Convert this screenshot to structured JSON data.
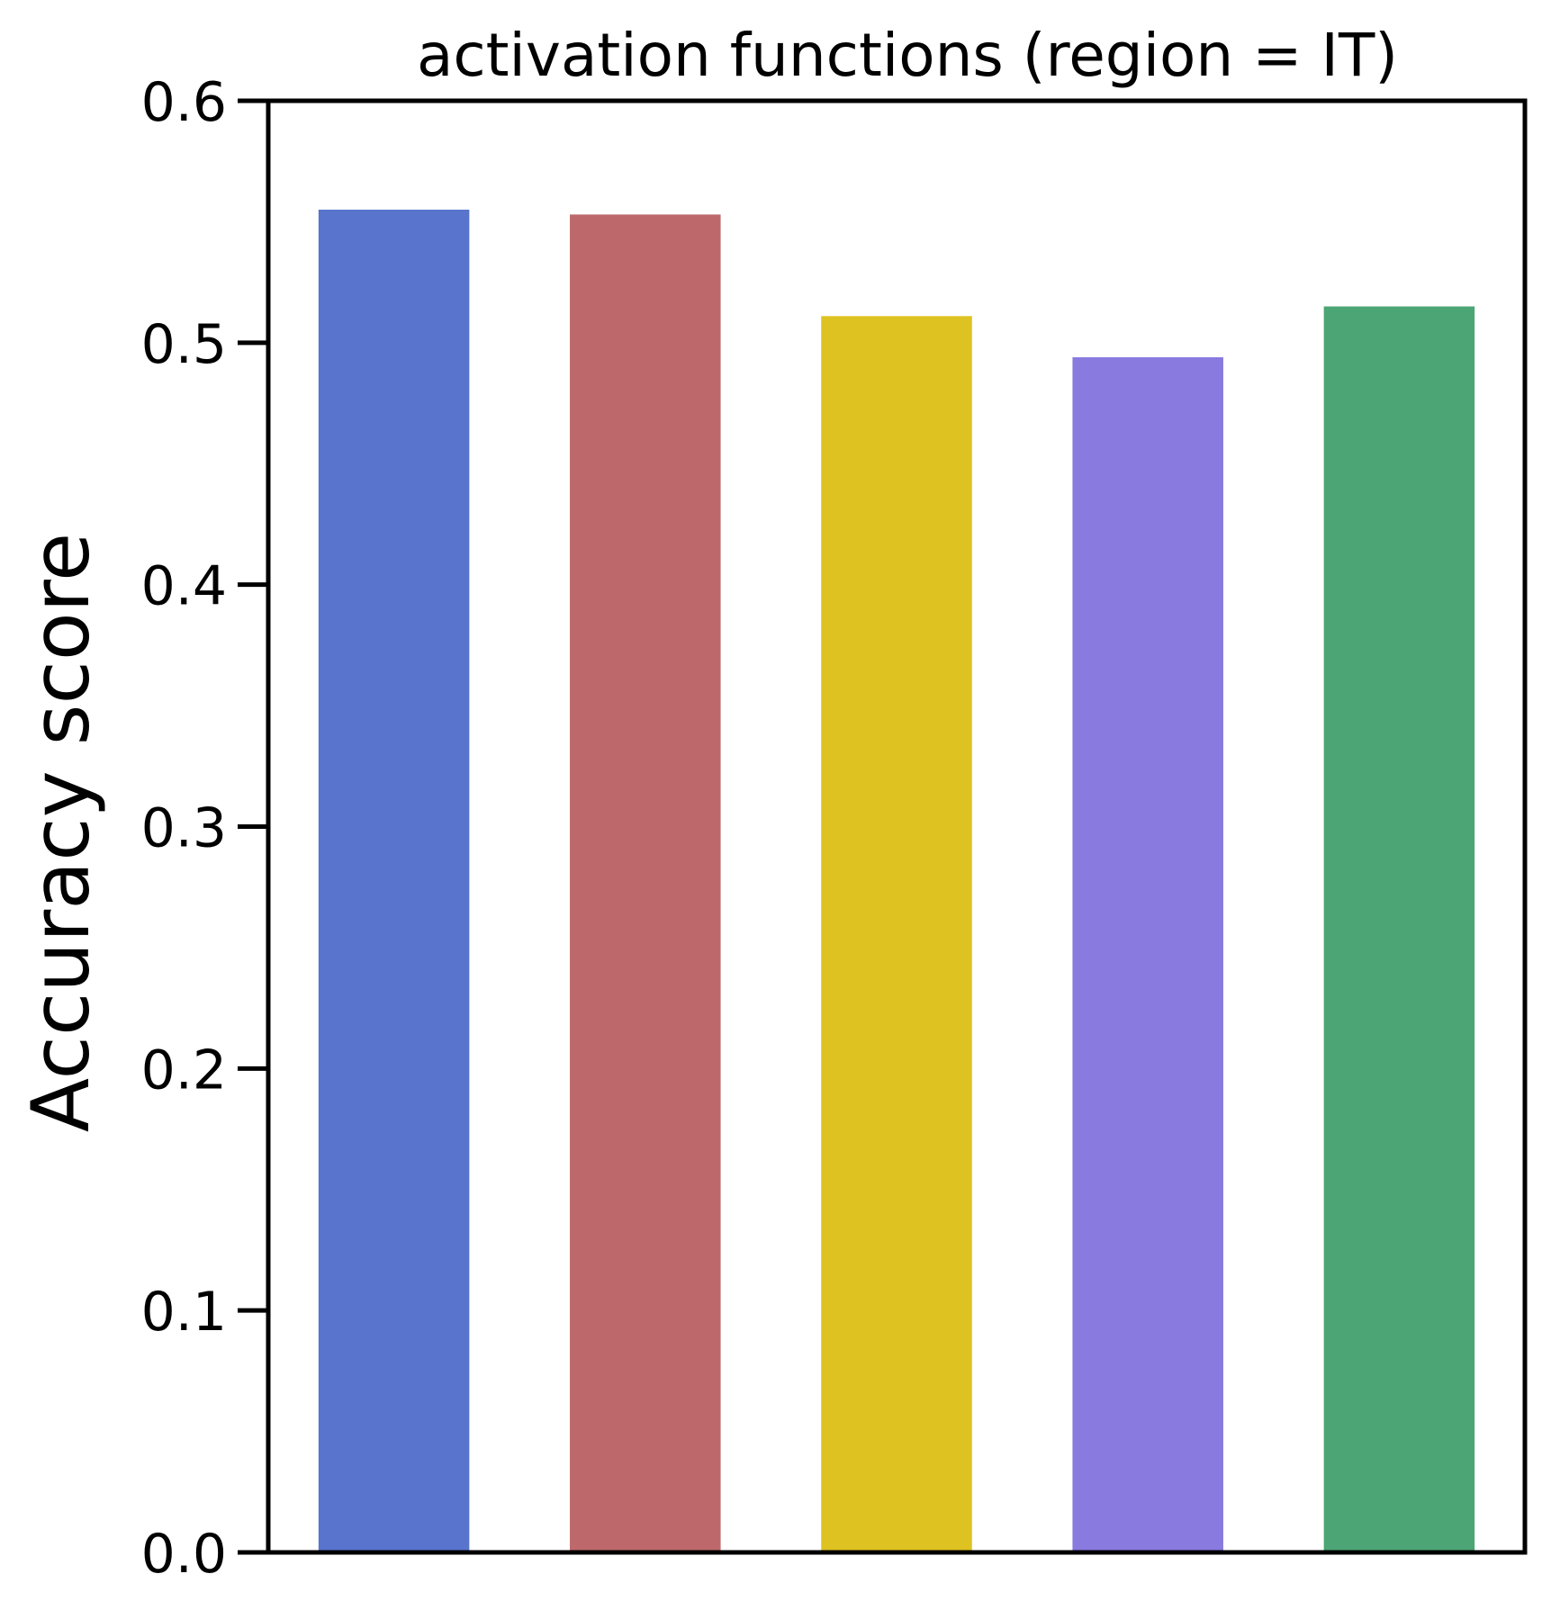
{
  "chart_data": {
    "type": "bar",
    "title": "activation functions (region = IT)",
    "xlabel": "",
    "ylabel": "Accuracy score",
    "ylim": [
      0,
      0.6
    ],
    "yticks": [
      "0.0",
      "0.1",
      "0.2",
      "0.3",
      "0.4",
      "0.5",
      "0.6"
    ],
    "categories": [
      "",
      "",
      "",
      "",
      ""
    ],
    "values": [
      0.555,
      0.553,
      0.511,
      0.494,
      0.515
    ],
    "colors": [
      "#5874cc",
      "#bd696b",
      "#dec221",
      "#887ade",
      "#4ca574"
    ],
    "grid": false,
    "legend": "none"
  }
}
